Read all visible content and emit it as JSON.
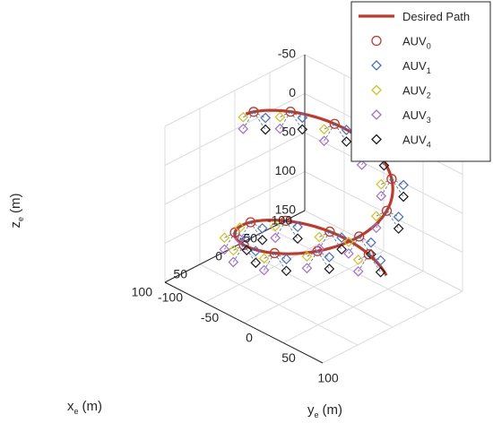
{
  "chart_data": {
    "type": "line",
    "projection": "3d",
    "grid": true,
    "legend_placement": "top-right",
    "axes": {
      "x": {
        "label": "x",
        "label_sub": "e",
        "unit": "(m)",
        "ticks": [
          "100",
          "50",
          "0",
          "-50",
          "-100"
        ],
        "lim": [
          -100,
          100
        ]
      },
      "y": {
        "label": "y",
        "label_sub": "e",
        "unit": "(m)",
        "ticks": [
          "-100",
          "-50",
          "0",
          "50",
          "100"
        ],
        "lim": [
          -100,
          100
        ]
      },
      "z": {
        "label": "z",
        "label_sub": "e",
        "unit": "(m)",
        "ticks": [
          "-50",
          "0",
          "50",
          "100",
          "150"
        ],
        "lim": [
          -50,
          150
        ],
        "reversed": true
      }
    },
    "legend": [
      {
        "name": "Desired Path",
        "sub": "",
        "color": "#c0392b",
        "marker": "line"
      },
      {
        "name": "AUV",
        "sub": "0",
        "color": "#c0392b",
        "marker": "circle"
      },
      {
        "name": "AUV",
        "sub": "1",
        "color": "#4a6fc8",
        "marker": "diamond"
      },
      {
        "name": "AUV",
        "sub": "2",
        "color": "#d4c21a",
        "marker": "diamond"
      },
      {
        "name": "AUV",
        "sub": "3",
        "color": "#a86bd1",
        "marker": "diamond"
      },
      {
        "name": "AUV",
        "sub": "4",
        "color": "#1a1a1a",
        "marker": "diamond"
      }
    ],
    "desired_path": {
      "shape": "helix",
      "center": [
        0,
        0
      ],
      "radius": 75,
      "z_range": [
        -40,
        150
      ],
      "turns": 1.35
    },
    "formation_offsets": [
      {
        "auv": "AUV1",
        "dx": 0,
        "dy": 15,
        "dz": 0
      },
      {
        "auv": "AUV2",
        "dx": 15,
        "dy": 0,
        "dz": 0
      },
      {
        "auv": "AUV3",
        "dx": 15,
        "dy": 0,
        "dz": 15
      },
      {
        "auv": "AUV4",
        "dx": 0,
        "dy": 15,
        "dz": 15
      }
    ],
    "snapshot_count": 15
  }
}
